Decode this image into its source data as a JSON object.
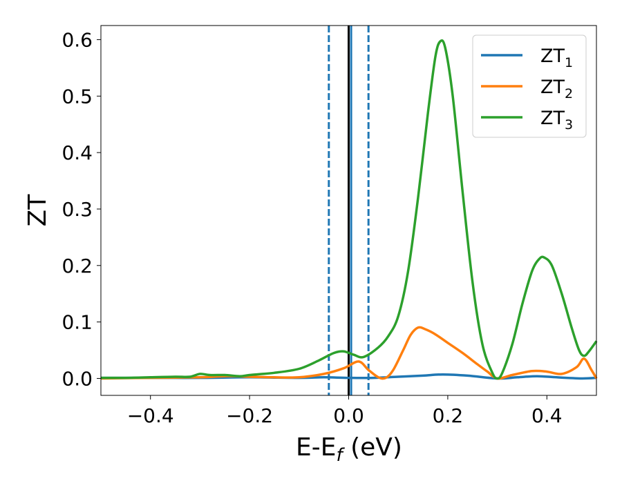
{
  "chart_data": {
    "type": "line",
    "xlabel": {
      "main": "E-E",
      "sub": "f",
      "unit": " (eV)"
    },
    "ylabel": "ZT",
    "xlim": [
      -0.5,
      0.5
    ],
    "ylim": [
      -0.03,
      0.625
    ],
    "x_ticks": [
      -0.4,
      -0.2,
      0.0,
      0.2,
      0.4
    ],
    "x_tick_labels": [
      "−0.4",
      "−0.2",
      "0.0",
      "0.2",
      "0.4"
    ],
    "y_ticks": [
      0.0,
      0.1,
      0.2,
      0.3,
      0.4,
      0.5,
      0.6
    ],
    "y_tick_labels": [
      "0.0",
      "0.1",
      "0.2",
      "0.3",
      "0.4",
      "0.5",
      "0.6"
    ],
    "grid": false,
    "legend_position": "top-right",
    "reference_lines": [
      {
        "x": 0.0,
        "style": "solid",
        "color": "#000000"
      },
      {
        "x": 0.0,
        "style": "dashed",
        "color": "#000000"
      },
      {
        "x": -0.04,
        "style": "dashed",
        "color": "#1f77b4"
      },
      {
        "x": 0.04,
        "style": "dashed",
        "color": "#1f77b4"
      },
      {
        "x": 0.005,
        "style": "solid",
        "color": "#1f77b4"
      }
    ],
    "series": [
      {
        "name": "ZT",
        "sub": "1",
        "color": "#1f77b4",
        "points": [
          [
            -0.5,
            0.001
          ],
          [
            -0.4,
            0.001
          ],
          [
            -0.3,
            0.001
          ],
          [
            -0.2,
            0.002
          ],
          [
            -0.1,
            0.001
          ],
          [
            -0.05,
            0.002
          ],
          [
            0.0,
            0.001
          ],
          [
            0.05,
            0.001
          ],
          [
            0.1,
            0.003
          ],
          [
            0.15,
            0.005
          ],
          [
            0.19,
            0.007
          ],
          [
            0.24,
            0.005
          ],
          [
            0.3,
            0.0
          ],
          [
            0.34,
            0.002
          ],
          [
            0.38,
            0.004
          ],
          [
            0.42,
            0.002
          ],
          [
            0.47,
            0.0
          ],
          [
            0.5,
            0.001
          ]
        ]
      },
      {
        "name": "ZT",
        "sub": "2",
        "color": "#ff7f0e",
        "points": [
          [
            -0.5,
            0.0
          ],
          [
            -0.4,
            0.001
          ],
          [
            -0.3,
            0.002
          ],
          [
            -0.25,
            0.004
          ],
          [
            -0.2,
            0.003
          ],
          [
            -0.15,
            0.002
          ],
          [
            -0.1,
            0.002
          ],
          [
            -0.05,
            0.008
          ],
          [
            -0.01,
            0.018
          ],
          [
            0.02,
            0.03
          ],
          [
            0.04,
            0.015
          ],
          [
            0.06,
            0.002
          ],
          [
            0.075,
            0.001
          ],
          [
            0.09,
            0.015
          ],
          [
            0.11,
            0.05
          ],
          [
            0.125,
            0.077
          ],
          [
            0.14,
            0.09
          ],
          [
            0.155,
            0.087
          ],
          [
            0.175,
            0.078
          ],
          [
            0.2,
            0.063
          ],
          [
            0.23,
            0.045
          ],
          [
            0.26,
            0.025
          ],
          [
            0.28,
            0.012
          ],
          [
            0.3,
            0.0
          ],
          [
            0.33,
            0.006
          ],
          [
            0.37,
            0.013
          ],
          [
            0.4,
            0.012
          ],
          [
            0.43,
            0.008
          ],
          [
            0.46,
            0.02
          ],
          [
            0.475,
            0.035
          ],
          [
            0.49,
            0.015
          ],
          [
            0.5,
            0.0
          ]
        ]
      },
      {
        "name": "ZT",
        "sub": "3",
        "color": "#2ca02c",
        "points": [
          [
            -0.5,
            0.001
          ],
          [
            -0.45,
            0.001
          ],
          [
            -0.4,
            0.002
          ],
          [
            -0.35,
            0.003
          ],
          [
            -0.32,
            0.003
          ],
          [
            -0.3,
            0.008
          ],
          [
            -0.28,
            0.006
          ],
          [
            -0.25,
            0.006
          ],
          [
            -0.22,
            0.004
          ],
          [
            -0.2,
            0.006
          ],
          [
            -0.15,
            0.01
          ],
          [
            -0.1,
            0.017
          ],
          [
            -0.06,
            0.032
          ],
          [
            -0.03,
            0.045
          ],
          [
            -0.01,
            0.048
          ],
          [
            0.01,
            0.042
          ],
          [
            0.03,
            0.038
          ],
          [
            0.06,
            0.055
          ],
          [
            0.08,
            0.075
          ],
          [
            0.1,
            0.11
          ],
          [
            0.12,
            0.19
          ],
          [
            0.14,
            0.32
          ],
          [
            0.16,
            0.47
          ],
          [
            0.175,
            0.57
          ],
          [
            0.185,
            0.597
          ],
          [
            0.195,
            0.585
          ],
          [
            0.21,
            0.5
          ],
          [
            0.23,
            0.33
          ],
          [
            0.25,
            0.17
          ],
          [
            0.27,
            0.06
          ],
          [
            0.29,
            0.01
          ],
          [
            0.3,
            0.0
          ],
          [
            0.31,
            0.01
          ],
          [
            0.33,
            0.06
          ],
          [
            0.35,
            0.13
          ],
          [
            0.37,
            0.19
          ],
          [
            0.385,
            0.212
          ],
          [
            0.395,
            0.214
          ],
          [
            0.41,
            0.2
          ],
          [
            0.43,
            0.15
          ],
          [
            0.45,
            0.09
          ],
          [
            0.465,
            0.05
          ],
          [
            0.475,
            0.04
          ],
          [
            0.485,
            0.048
          ],
          [
            0.5,
            0.066
          ]
        ]
      }
    ]
  }
}
